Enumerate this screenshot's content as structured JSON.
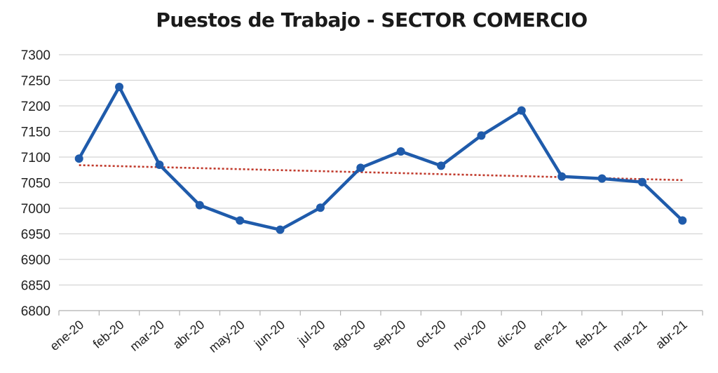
{
  "chart_data": {
    "type": "line",
    "title": "Puestos de Trabajo - SECTOR COMERCIO",
    "xlabel": "",
    "ylabel": "",
    "categories": [
      "ene-20",
      "feb-20",
      "mar-20",
      "abr-20",
      "may-20",
      "jun-20",
      "jul-20",
      "ago-20",
      "sep-20",
      "oct-20",
      "nov-20",
      "dic-20",
      "ene-21",
      "feb-21",
      "mar-21",
      "abr-21"
    ],
    "series": [
      {
        "values": [
          7097,
          7237,
          7085,
          7006,
          6976,
          6958,
          7001,
          7079,
          7111,
          7083,
          7142,
          7191,
          7062,
          7058,
          7051,
          6976
        ],
        "color": "#1f5bab"
      }
    ],
    "trendline": {
      "type": "linear",
      "color": "#c0392b",
      "style": "dotted"
    },
    "ylim": [
      6800,
      7300
    ],
    "yticks": [
      6800,
      6850,
      6900,
      6950,
      7000,
      7050,
      7100,
      7150,
      7200,
      7250,
      7300
    ],
    "grid": "horizontal",
    "legend": "none"
  }
}
